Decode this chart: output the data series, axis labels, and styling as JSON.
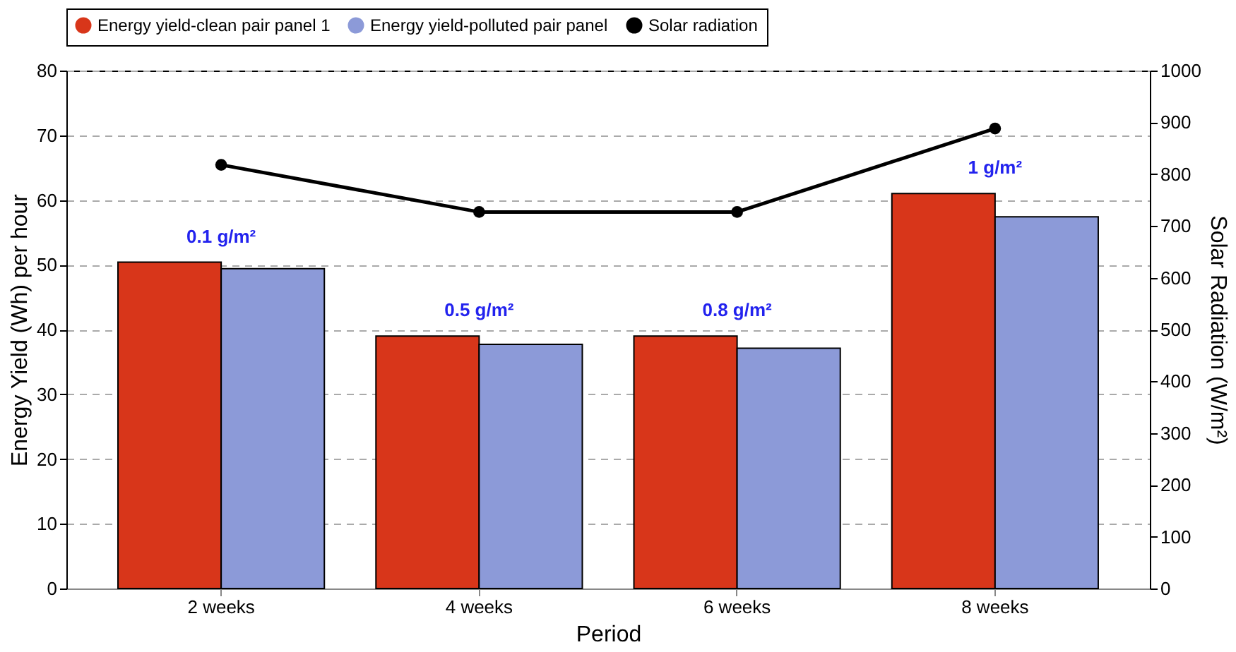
{
  "chart_data": {
    "type": "bar",
    "xlabel": "Period",
    "ylabel": "Energy Yield (Wh) per hour",
    "y2label": "Solar Radiation (W/m²)",
    "categories": [
      "2 weeks",
      "4 weeks",
      "6 weeks",
      "8 weeks"
    ],
    "series": [
      {
        "name": "Energy yield-clean pair panel 1",
        "color": "#d8361a",
        "values": [
          50.4,
          39.0,
          39.0,
          61.0
        ]
      },
      {
        "name": "Energy yield-polluted pair panel",
        "color": "#8c9ad8",
        "values": [
          49.4,
          37.7,
          37.1,
          57.4
        ]
      },
      {
        "name": "Solar radiation",
        "type": "line",
        "axis": "y2",
        "color": "#000000",
        "marker": "circle",
        "values": [
          818,
          727,
          727,
          888
        ]
      }
    ],
    "ylim": [
      0,
      80
    ],
    "yticks": [
      0,
      10,
      20,
      30,
      40,
      50,
      60,
      70,
      80
    ],
    "y2lim": [
      0,
      1000
    ],
    "y2ticks": [
      0,
      100,
      200,
      300,
      400,
      500,
      600,
      700,
      800,
      900,
      {
        "value": 1000,
        "label": "1000"
      }
    ],
    "grid": "y",
    "legend": "top",
    "annotations": [
      "0.1 g/m²",
      "0.5 g/m²",
      "0.8 g/m²",
      "1 g/m²"
    ]
  }
}
